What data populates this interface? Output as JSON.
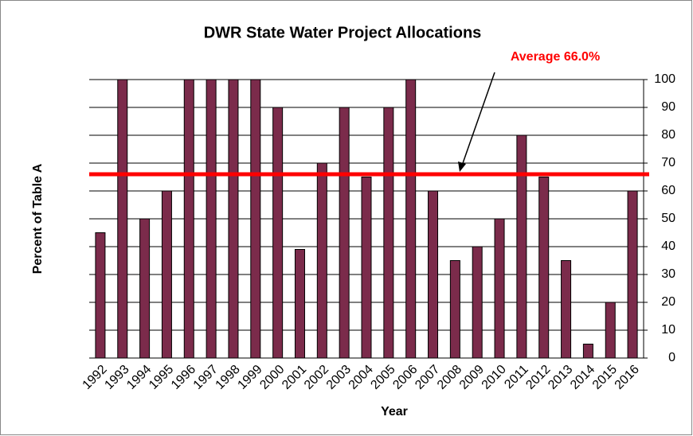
{
  "chart_data": {
    "type": "bar",
    "title": "DWR State Water Project Allocations",
    "x_label": "Year",
    "y_label": "Percent of Table A",
    "categories": [
      "1992",
      "1993",
      "1994",
      "1995",
      "1996",
      "1997",
      "1998",
      "1999",
      "2000",
      "2001",
      "2002",
      "2003",
      "2004",
      "2005",
      "2006",
      "2007",
      "2008",
      "2009",
      "2010",
      "2011",
      "2012",
      "2013",
      "2014",
      "2015",
      "2016"
    ],
    "values": [
      45,
      100,
      50,
      60,
      100,
      100,
      100,
      100,
      90,
      39,
      70,
      90,
      65,
      90,
      100,
      60,
      35,
      40,
      50,
      80,
      65,
      35,
      5,
      20,
      60
    ],
    "color": "#7b2b4b",
    "ylim": [
      0,
      100
    ],
    "yticks": [
      0,
      10,
      20,
      30,
      40,
      50,
      60,
      70,
      80,
      90,
      100
    ],
    "grid": true,
    "y_axis_side": "right",
    "average": {
      "value": 66,
      "label": "Average 66.0%",
      "color": "#ff0000"
    }
  }
}
